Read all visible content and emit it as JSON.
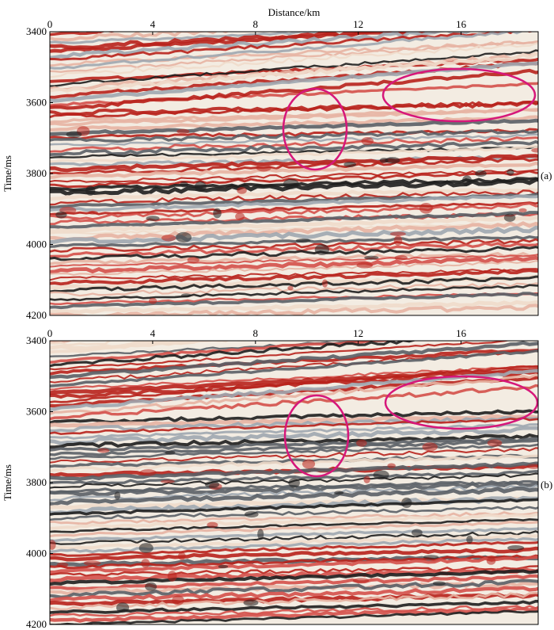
{
  "chart_data": [
    {
      "type": "seismic",
      "x_label": "Distance/km",
      "y_label": "Time/ms",
      "annotation": "(a)",
      "xlim": [
        0,
        19
      ],
      "ylim": [
        3400,
        4200
      ],
      "y_inverted": true,
      "xticks": [
        0,
        4,
        8,
        12,
        16
      ],
      "yticks": [
        3400,
        3600,
        3800,
        4000,
        4200
      ]
    },
    {
      "type": "seismic",
      "y_label": "Time/ms",
      "annotation": "(b)",
      "xlim": [
        0,
        19
      ],
      "ylim": [
        3400,
        4200
      ],
      "y_inverted": true,
      "xticks": [
        0,
        4,
        8,
        12,
        16
      ],
      "yticks": [
        3400,
        3600,
        3800,
        4000,
        4200
      ]
    }
  ]
}
